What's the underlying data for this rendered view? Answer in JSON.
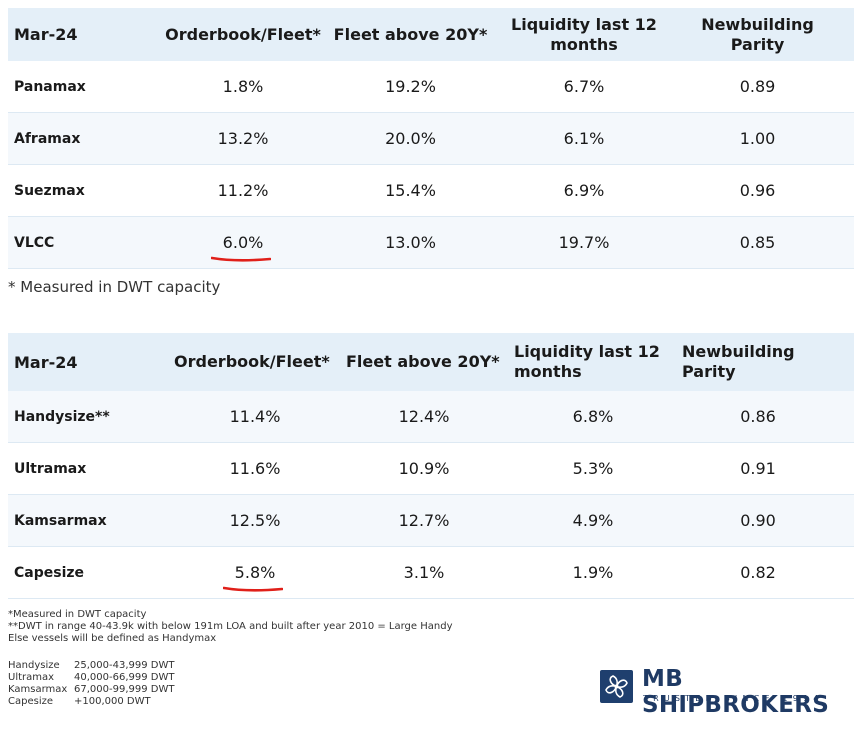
{
  "table1": {
    "headers": [
      "Mar-24",
      "Orderbook/Fleet*",
      "Fleet above 20Y*",
      "Liquidity last 12 months",
      "Newbuilding Parity"
    ],
    "rows": [
      [
        "Panamax",
        "1.8%",
        "19.2%",
        "6.7%",
        "0.89"
      ],
      [
        "Aframax",
        "13.2%",
        "20.0%",
        "6.1%",
        "1.00"
      ],
      [
        "Suezmax",
        "11.2%",
        "15.4%",
        "6.9%",
        "0.96"
      ],
      [
        "VLCC",
        "6.0%",
        "13.0%",
        "19.7%",
        "0.85"
      ]
    ],
    "note": "* Measured in DWT capacity"
  },
  "table2": {
    "headers": [
      "Mar-24",
      "Orderbook/Fleet*",
      "Fleet above 20Y*",
      "Liquidity last 12 months",
      "Newbuilding Parity"
    ],
    "rows": [
      [
        "Handysize**",
        "11.4%",
        "12.4%",
        "6.8%",
        "0.86"
      ],
      [
        "Ultramax",
        "11.6%",
        "10.9%",
        "5.3%",
        "0.91"
      ],
      [
        "Kamsarmax",
        "12.5%",
        "12.7%",
        "4.9%",
        "0.90"
      ],
      [
        "Capesize",
        "5.8%",
        "3.1%",
        "1.9%",
        "0.82"
      ]
    ]
  },
  "footnotes": [
    "*Measured in DWT capacity",
    "**DWT in range 40-43.9k with below 191m LOA and built after year 2010 = Large Handy",
    "Else vessels will be defined as Handymax"
  ],
  "size_ranges": [
    {
      "name": "Handysize",
      "range": "25,000-43,999 DWT"
    },
    {
      "name": "Ultramax",
      "range": "40,000-66,999 DWT"
    },
    {
      "name": "Kamsarmax",
      "range": "67,000-99,999 DWT"
    },
    {
      "name": "Capesize",
      "range": "+100,000 DWT"
    }
  ],
  "logo": {
    "title": "MB SHIPBROKERS",
    "subtitle": "TRUSTED SINCE 1914"
  },
  "colors": {
    "header_bg": "#e4eff8",
    "highlight": "#e0201a",
    "brand": "#1f3f6e"
  }
}
